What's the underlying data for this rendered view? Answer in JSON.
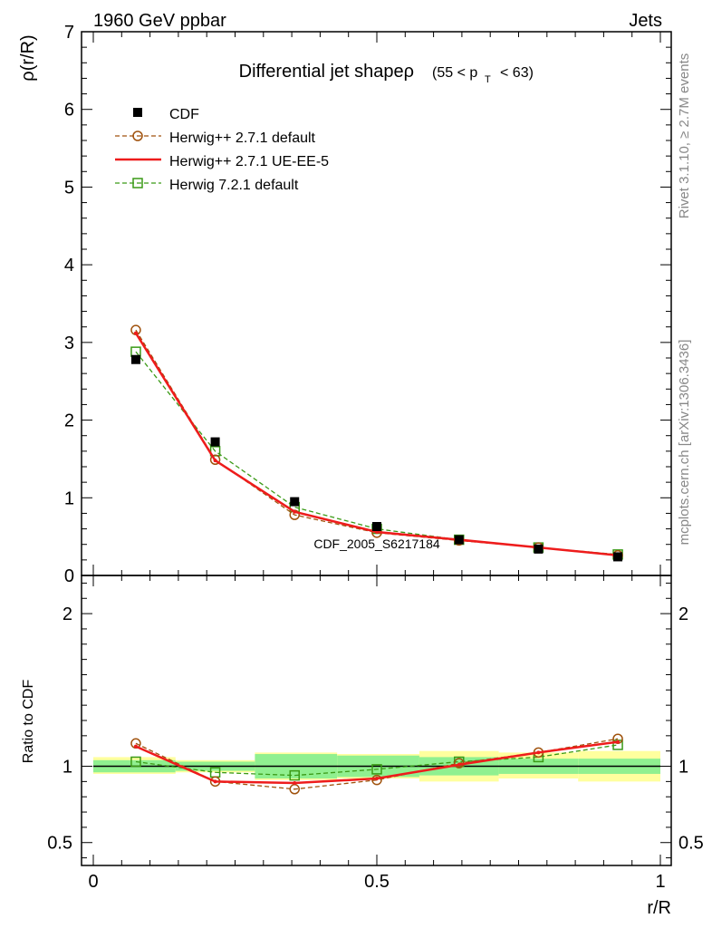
{
  "header": {
    "left_label": "1960 GeV ppbar",
    "right_label": "Jets"
  },
  "side_text": {
    "rivet": "Rivet 3.1.10, ≥ 2.7M events",
    "mcplots": "mcplots.cern.ch [arXiv:1306.3436]"
  },
  "colors": {
    "cdf": "#000000",
    "herwigpp_default": "#a0520d",
    "herwigpp_ueee5": "#ee1c1c",
    "herwig72": "#3a9a16",
    "band_inner": "#90f090",
    "band_outer": "#ffff9e"
  },
  "chart_data": [
    {
      "type": "line",
      "title": "Differential jet shapeρ",
      "title_range": "(55 < p_T < 63)",
      "ylabel": "ρ(r/R)",
      "xlabel": "",
      "watermark": "CDF_2005_S6217184",
      "xlim": [
        0,
        1
      ],
      "ylim": [
        0,
        7
      ],
      "yticks": [
        0,
        1,
        2,
        3,
        4,
        5,
        6,
        7
      ],
      "legend_position": "top-left",
      "x": [
        0.075,
        0.215,
        0.355,
        0.5,
        0.645,
        0.785,
        0.925
      ],
      "series": [
        {
          "name": "CDF",
          "key": "cdf",
          "values": [
            2.78,
            1.72,
            0.95,
            0.63,
            0.46,
            0.34,
            0.24
          ]
        },
        {
          "name": "Herwig++ 2.7.1 default",
          "key": "herwigpp_default",
          "values": [
            3.16,
            1.49,
            0.78,
            0.55,
            0.45,
            0.36,
            0.26
          ]
        },
        {
          "name": "Herwig++ 2.7.1 UE-EE-5",
          "key": "herwigpp_ueee5",
          "values": [
            3.12,
            1.48,
            0.82,
            0.56,
            0.46,
            0.36,
            0.26
          ]
        },
        {
          "name": "Herwig 7.2.1 default",
          "key": "herwig72",
          "values": [
            2.88,
            1.6,
            0.88,
            0.6,
            0.46,
            0.36,
            0.27
          ]
        }
      ]
    },
    {
      "type": "line",
      "ylabel": "Ratio to CDF",
      "xlabel": "r/R",
      "xlim": [
        0,
        1
      ],
      "ylim": [
        0.35,
        2.25
      ],
      "yticks": [
        0.5,
        1,
        2
      ],
      "xticks": [
        0,
        0.5,
        1
      ],
      "x": [
        0.075,
        0.215,
        0.355,
        0.5,
        0.645,
        0.785,
        0.925
      ],
      "bands": {
        "edges": [
          0,
          0.145,
          0.285,
          0.43,
          0.575,
          0.715,
          0.855,
          1.0
        ],
        "inner_low": [
          0.96,
          0.97,
          0.92,
          0.93,
          0.94,
          0.95,
          0.95
        ],
        "inner_high": [
          1.04,
          1.03,
          1.08,
          1.07,
          1.06,
          1.05,
          1.05
        ],
        "outer_low": [
          0.95,
          0.96,
          0.91,
          0.92,
          0.9,
          0.92,
          0.9
        ],
        "outer_high": [
          1.06,
          1.04,
          1.09,
          1.08,
          1.1,
          1.09,
          1.1
        ]
      },
      "series": [
        {
          "name": "Herwig++ 2.7.1 default",
          "key": "herwigpp_default",
          "values": [
            1.15,
            0.9,
            0.85,
            0.91,
            1.02,
            1.09,
            1.18
          ]
        },
        {
          "name": "Herwig++ 2.7.1 UE-EE-5",
          "key": "herwigpp_ueee5",
          "values": [
            1.13,
            0.9,
            0.89,
            0.92,
            1.01,
            1.09,
            1.16
          ]
        },
        {
          "name": "Herwig 7.2.1 default",
          "key": "herwig72",
          "values": [
            1.03,
            0.96,
            0.94,
            0.98,
            1.03,
            1.06,
            1.14
          ]
        }
      ]
    }
  ]
}
